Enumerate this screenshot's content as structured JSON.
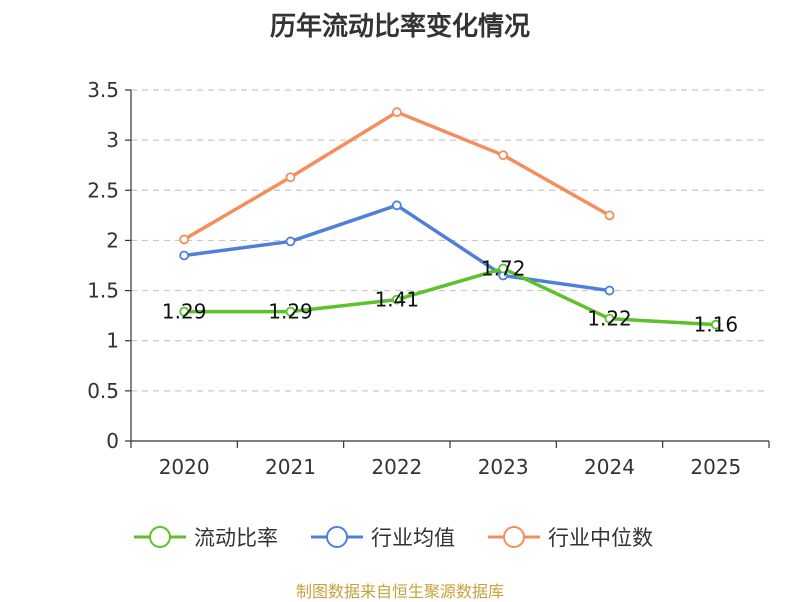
{
  "chart_data": {
    "type": "line",
    "title": "历年流动比率变化情况",
    "xlabel": "",
    "ylabel": "",
    "categories": [
      "2020",
      "2021",
      "2022",
      "2023",
      "2024",
      "2025"
    ],
    "ylim": [
      0,
      3.5
    ],
    "yticks": [
      "0",
      "0.5",
      "1",
      "1.5",
      "2",
      "2.5",
      "3",
      "3.5"
    ],
    "grid": true,
    "legend_position": "bottom",
    "series": [
      {
        "name": "流动比率",
        "color": "#5dc12b",
        "values": [
          1.29,
          1.29,
          1.41,
          1.72,
          1.22,
          1.16
        ],
        "labels": [
          "1.29",
          "1.29",
          "1.41",
          "1.72",
          "1.22",
          "1.16"
        ]
      },
      {
        "name": "行业均值",
        "color": "#4e80d9",
        "values": [
          1.85,
          1.99,
          2.35,
          1.65,
          1.5,
          null
        ]
      },
      {
        "name": "行业中位数",
        "color": "#f58d5c",
        "values": [
          2.01,
          2.63,
          3.28,
          2.85,
          2.25,
          null
        ]
      }
    ]
  },
  "source": "制图数据来自恒生聚源数据库"
}
